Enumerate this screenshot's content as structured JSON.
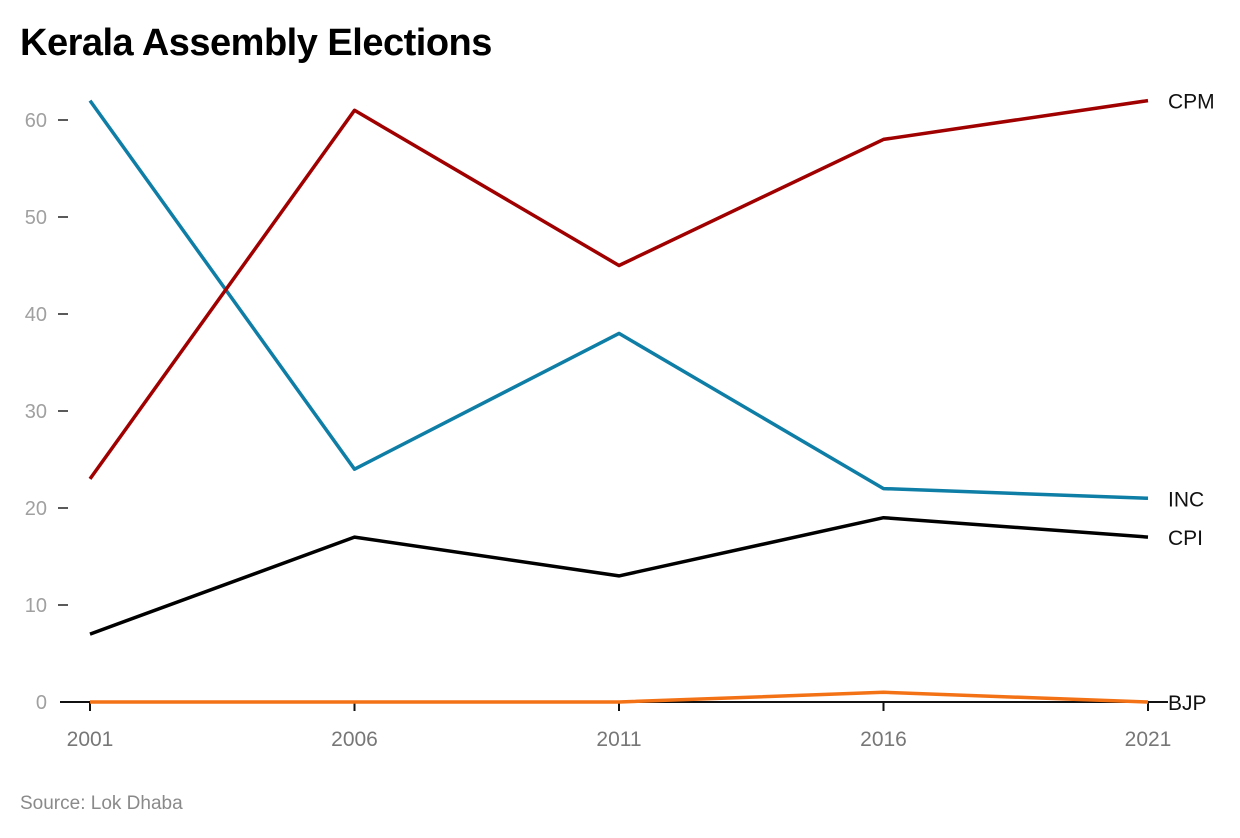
{
  "chart_data": {
    "type": "line",
    "title": "Kerala Assembly Elections",
    "source": "Source: Lok Dhaba",
    "x": [
      "2001",
      "2006",
      "2011",
      "2016",
      "2021"
    ],
    "ylim": [
      0,
      62
    ],
    "yticks": [
      "0",
      "10",
      "20",
      "30",
      "40",
      "50",
      "60"
    ],
    "grid": false,
    "legend": "direct labels at line ends",
    "series": [
      {
        "name": "CPM",
        "color": "#a00000",
        "values": [
          23,
          61,
          45,
          58,
          62
        ]
      },
      {
        "name": "INC",
        "color": "#0e7ea6",
        "values": [
          62,
          24,
          38,
          22,
          21
        ]
      },
      {
        "name": "CPI",
        "color": "#000000",
        "values": [
          7,
          17,
          13,
          19,
          17
        ]
      },
      {
        "name": "BJP",
        "color": "#f47216",
        "values": [
          0,
          0,
          0,
          1,
          0
        ]
      }
    ]
  }
}
